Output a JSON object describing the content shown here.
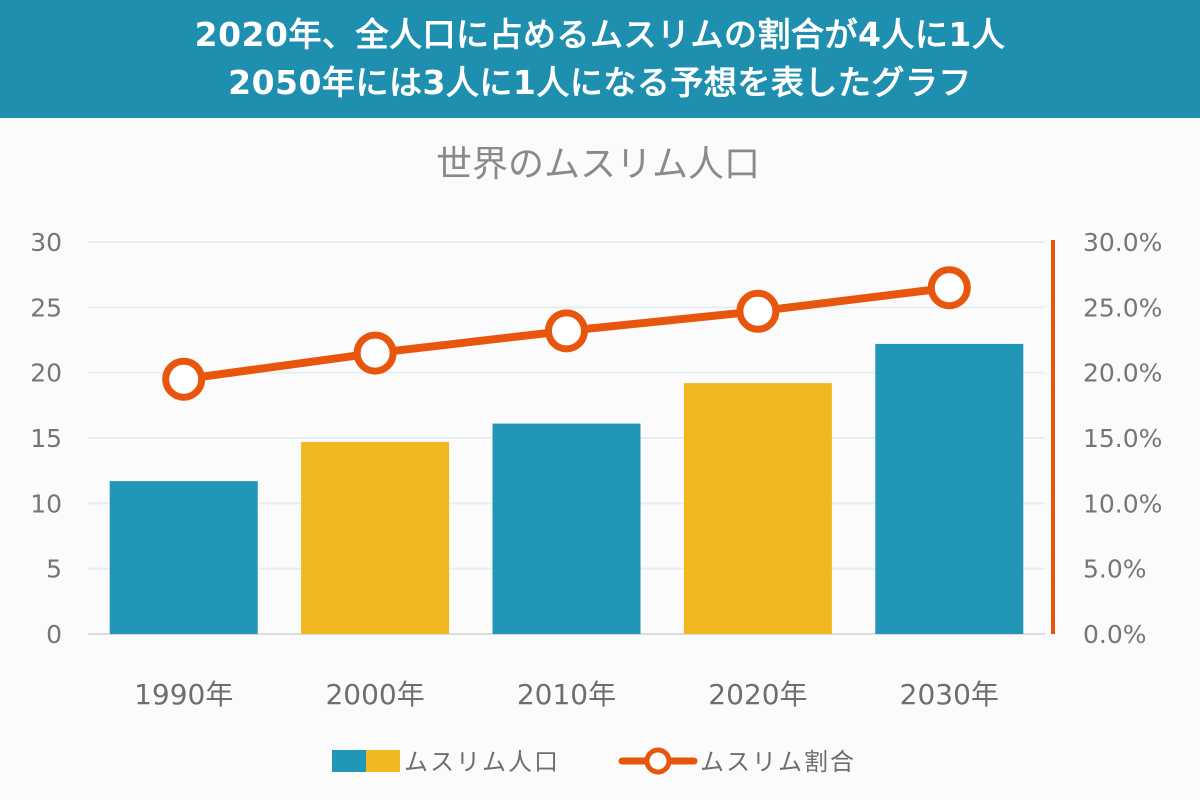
{
  "banner": {
    "line1": "2020年、全人口に占めるムスリムの割合が4人に1人",
    "line2": "2050年には3人に1人になる予想を表したグラフ"
  },
  "colors": {
    "banner_bg": "#1f8fb0",
    "bar_blue": "#2196b6",
    "bar_yellow": "#f2b81f",
    "line_orange": "#e8560d"
  },
  "chart_data": {
    "type": "bar",
    "title": "世界のムスリム人口",
    "categories": [
      "1990年",
      "2000年",
      "2010年",
      "2020年",
      "2030年"
    ],
    "series": [
      {
        "name": "ムスリム人口",
        "type": "bar",
        "axis": "left",
        "values": [
          11.7,
          14.7,
          16.1,
          19.2,
          22.2
        ],
        "colors": [
          "#2196b6",
          "#f2b81f",
          "#2196b6",
          "#f2b81f",
          "#2196b6"
        ]
      },
      {
        "name": "ムスリム割合",
        "type": "line",
        "axis": "right",
        "values": [
          0.195,
          0.215,
          0.232,
          0.247,
          0.265
        ],
        "color": "#e8560d"
      }
    ],
    "y_left": {
      "min": 0,
      "max": 30,
      "ticks": [
        "0",
        "5",
        "10",
        "15",
        "20",
        "25",
        "30"
      ]
    },
    "y_right": {
      "min": 0,
      "max": 0.3,
      "ticks": [
        "0.0%",
        "5.0%",
        "10.0%",
        "15.0%",
        "20.0%",
        "25.0%",
        "30.0%"
      ]
    },
    "grid": true,
    "legend_position": "bottom"
  }
}
